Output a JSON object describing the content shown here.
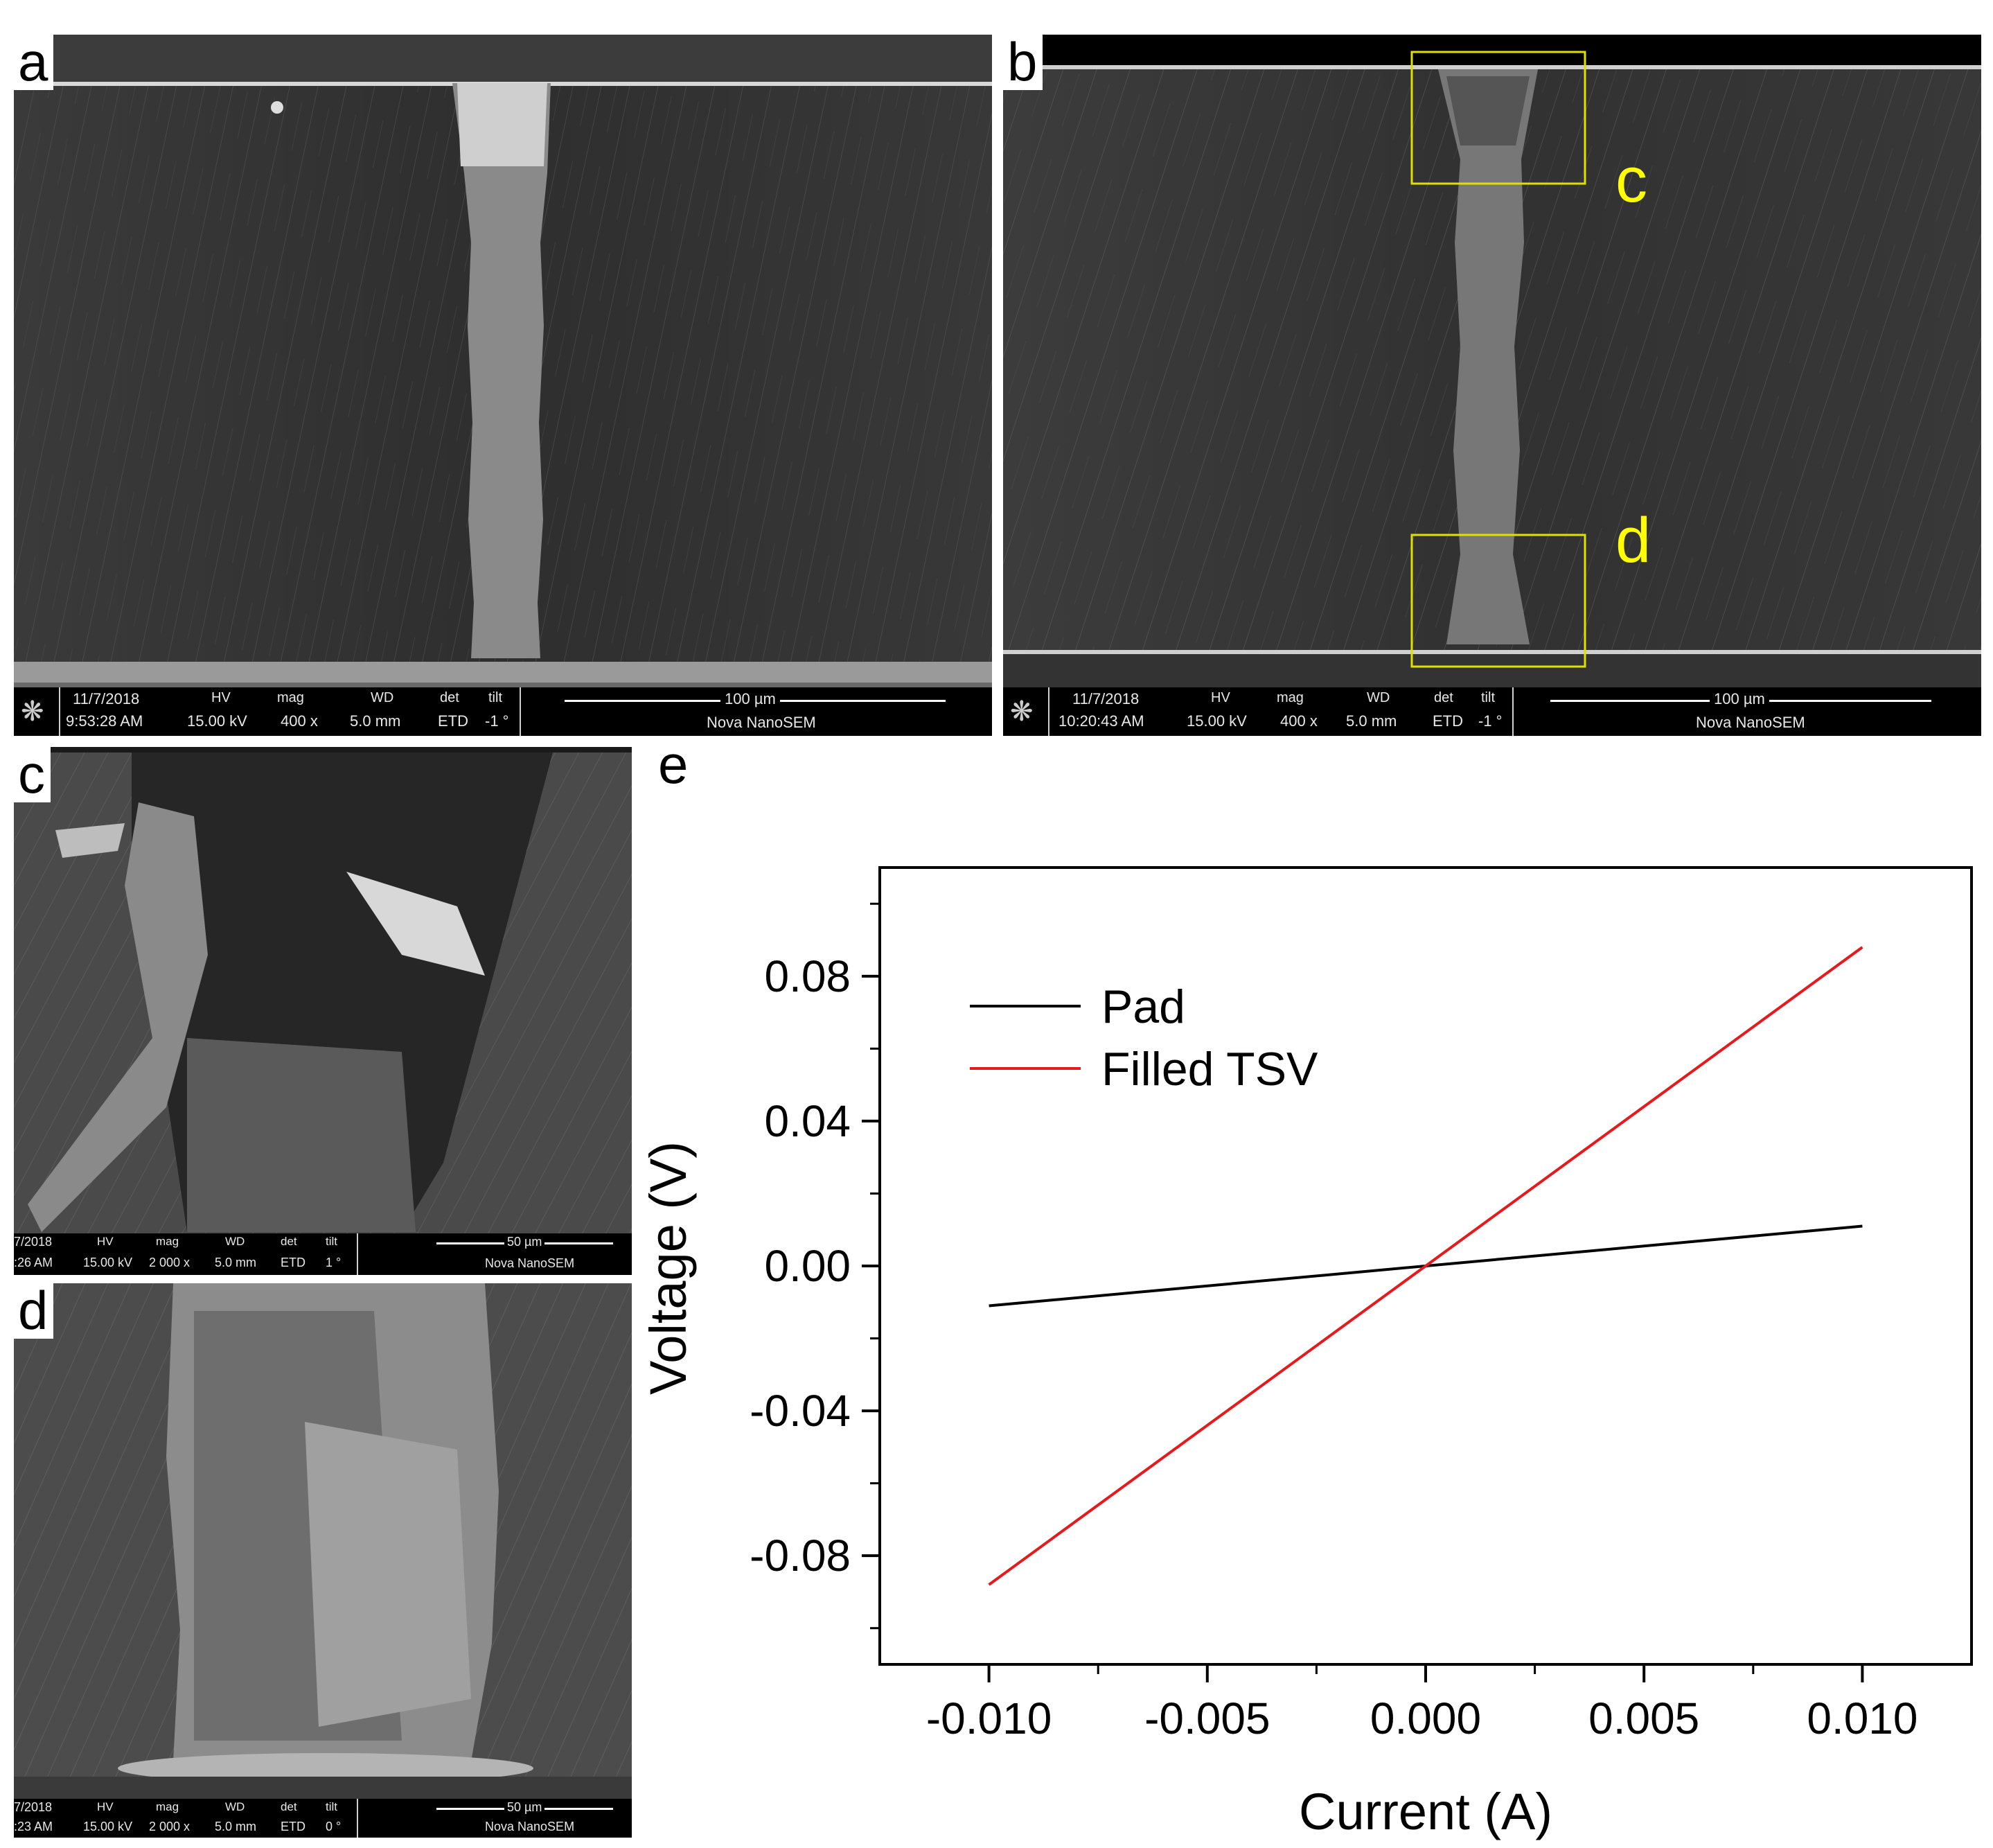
{
  "panels": {
    "a": {
      "letter": "a",
      "info": {
        "date": "11/7/2018",
        "time": "9:53:28 AM",
        "hv_label": "HV",
        "hv": "15.00 kV",
        "mag_label": "mag",
        "mag": "400 x",
        "wd_label": "WD",
        "wd": "5.0 mm",
        "det_label": "det",
        "det": "ETD",
        "tilt_label": "tilt",
        "tilt": "-1 °",
        "scale": "100 µm",
        "instrument": "Nova NanoSEM"
      }
    },
    "b": {
      "letter": "b",
      "box_labels": [
        "c",
        "d"
      ],
      "info": {
        "date": "11/7/2018",
        "time": "10:20:43 AM",
        "hv_label": "HV",
        "hv": "15.00 kV",
        "mag_label": "mag",
        "mag": "400 x",
        "wd_label": "WD",
        "wd": "5.0 mm",
        "det_label": "det",
        "det": "ETD",
        "tilt_label": "tilt",
        "tilt": "-1 °",
        "scale": "100 µm",
        "instrument": "Nova NanoSEM"
      }
    },
    "c": {
      "letter": "c",
      "info": {
        "date": "7/2018",
        "time": ":26 AM",
        "hv_label": "HV",
        "hv": "15.00 kV",
        "mag_label": "mag",
        "mag": "2 000 x",
        "wd_label": "WD",
        "wd": "5.0 mm",
        "det_label": "det",
        "det": "ETD",
        "tilt_label": "tilt",
        "tilt": "1 °",
        "scale": "50 µm",
        "instrument": "Nova NanoSEM"
      }
    },
    "d": {
      "letter": "d",
      "info": {
        "date": "7/2018",
        "time": ":23 AM",
        "hv_label": "HV",
        "hv": "15.00 kV",
        "mag_label": "mag",
        "mag": "2 000 x",
        "wd_label": "WD",
        "wd": "5.0 mm",
        "det_label": "det",
        "det": "ETD",
        "tilt_label": "tilt",
        "tilt": "0 °",
        "scale": "50 µm",
        "instrument": "Nova NanoSEM"
      }
    }
  },
  "chart_data": {
    "panel_letter": "e",
    "type": "line",
    "xlabel": "Current (A)",
    "ylabel": "Voltage (V)",
    "xlim": [
      -0.0125,
      0.0125
    ],
    "ylim": [
      -0.11,
      0.11
    ],
    "xticks": [
      -0.01,
      -0.005,
      0.0,
      0.005,
      0.01
    ],
    "xtick_labels": [
      "-0.010",
      "-0.005",
      "0.000",
      "0.005",
      "0.010"
    ],
    "yticks": [
      -0.08,
      -0.04,
      0.0,
      0.04,
      0.08
    ],
    "ytick_labels": [
      "-0.08",
      "-0.04",
      "0.00",
      "0.04",
      "0.08"
    ],
    "legend_position": "top-left",
    "grid": false,
    "series": [
      {
        "name": "Pad",
        "color": "#000000",
        "x": [
          -0.01,
          0.01
        ],
        "y": [
          -0.011,
          0.011
        ]
      },
      {
        "name": "Filled TSV",
        "color": "#e8191c",
        "x": [
          -0.01,
          0.01
        ],
        "y": [
          -0.088,
          0.088
        ]
      }
    ]
  }
}
